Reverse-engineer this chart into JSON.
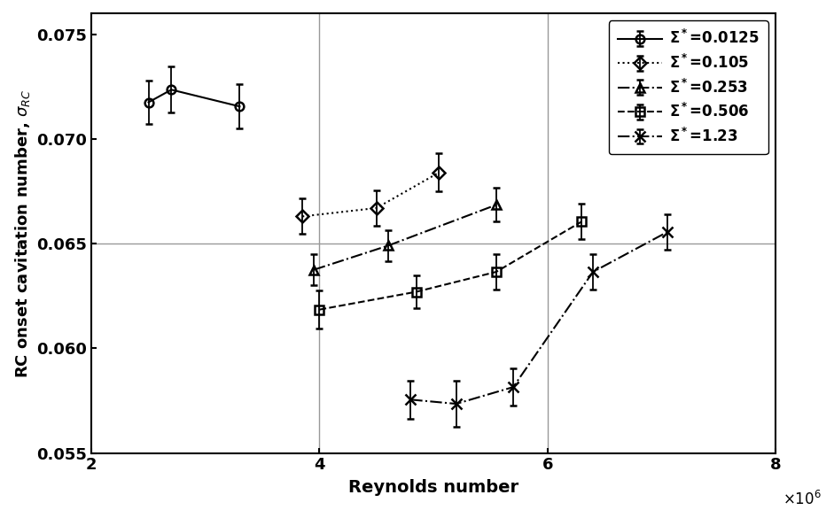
{
  "title": "",
  "xlabel": "Reynolds number",
  "xlim": [
    2000000.0,
    8000000.0
  ],
  "ylim": [
    0.055,
    0.076
  ],
  "yticks": [
    0.055,
    0.06,
    0.065,
    0.07,
    0.075
  ],
  "xticks": [
    2000000.0,
    4000000.0,
    6000000.0,
    8000000.0
  ],
  "vlines": [
    4000000.0,
    6000000.0
  ],
  "hlines": [
    0.065
  ],
  "series": [
    {
      "label": "Σ*=0.0125",
      "x": [
        2500000.0,
        2700000.0,
        3300000.0
      ],
      "y": [
        0.07175,
        0.07235,
        0.07155
      ],
      "yerr": [
        0.00105,
        0.0011,
        0.00105
      ],
      "linestyle": "-",
      "marker": "o",
      "markersize": 7,
      "color": "black"
    },
    {
      "label": "Σ*=0.105",
      "x": [
        3850000.0,
        4500000.0,
        5050000.0
      ],
      "y": [
        0.0663,
        0.0667,
        0.0684
      ],
      "yerr": [
        0.00085,
        0.00085,
        0.0009
      ],
      "linestyle": ":",
      "marker": "D",
      "markersize": 7,
      "color": "black"
    },
    {
      "label": "Σ*=0.253",
      "x": [
        3950000.0,
        4600000.0,
        5550000.0
      ],
      "y": [
        0.06375,
        0.0649,
        0.06685
      ],
      "yerr": [
        0.00075,
        0.00075,
        0.0008
      ],
      "linestyle": "-.",
      "marker": "^",
      "markersize": 7,
      "color": "black"
    },
    {
      "label": "Σ*=0.506",
      "x": [
        4000000.0,
        4850000.0,
        5550000.0,
        6300000.0
      ],
      "y": [
        0.06185,
        0.0627,
        0.06365,
        0.06605
      ],
      "yerr": [
        0.0009,
        0.0008,
        0.00085,
        0.00085
      ],
      "linestyle": "--",
      "marker": "s",
      "markersize": 7,
      "color": "black"
    },
    {
      "label": "Σ*=1.23",
      "x": [
        4800000.0,
        5200000.0,
        5700000.0,
        6400000.0,
        7050000.0
      ],
      "y": [
        0.05755,
        0.05735,
        0.05815,
        0.06365,
        0.06555
      ],
      "yerr": [
        0.0009,
        0.0011,
        0.0009,
        0.00085,
        0.00085
      ],
      "linestyle": "-.",
      "marker": "x",
      "markersize": 9,
      "color": "black"
    }
  ],
  "legend_loc": "upper right",
  "background_color": "#ffffff"
}
